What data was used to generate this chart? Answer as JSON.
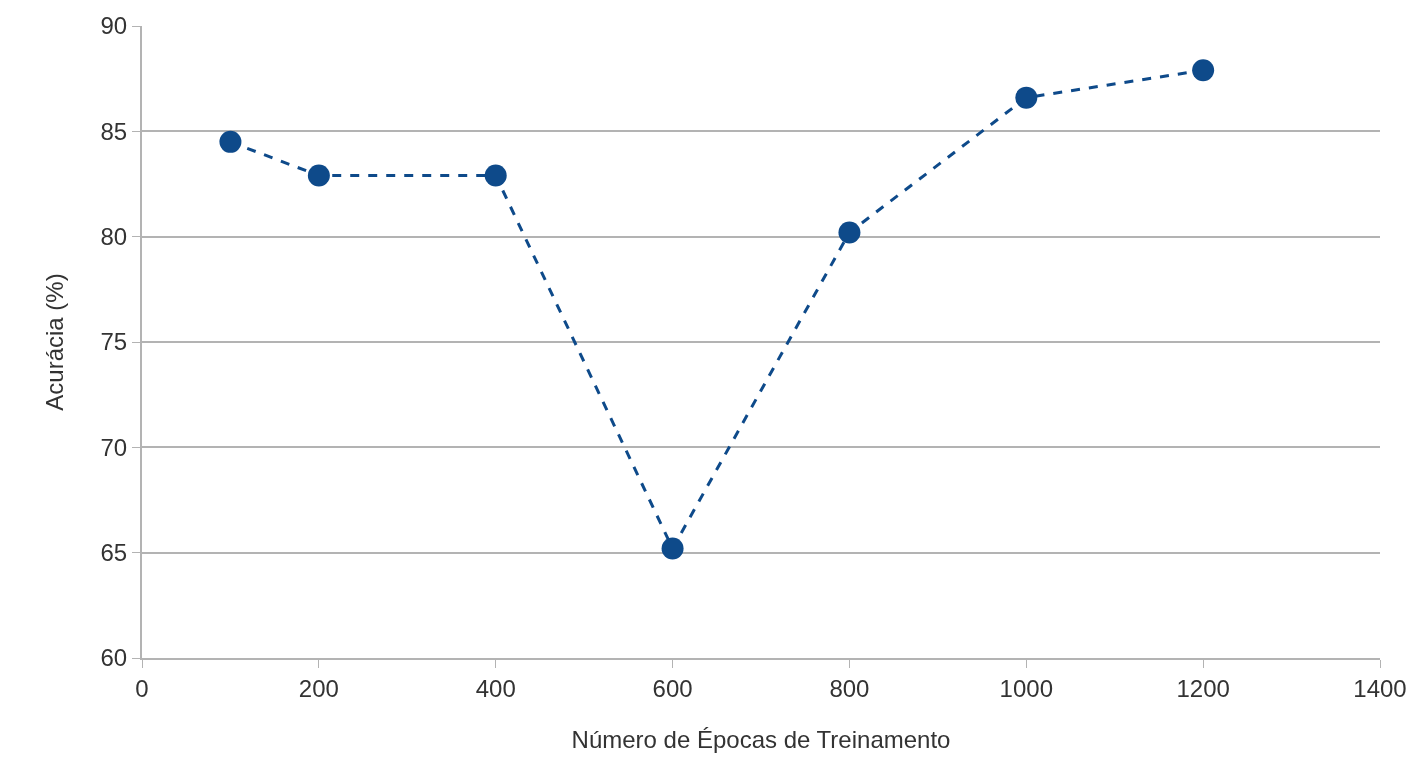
{
  "chart_data": {
    "type": "line",
    "xlabel": "Número de Épocas de Treinamento",
    "ylabel": "Acurácia (%)",
    "x": [
      100,
      200,
      400,
      600,
      800,
      1000,
      1200
    ],
    "series": [
      {
        "color": "#0e4a8a",
        "values": [
          84.5,
          82.9,
          82.9,
          65.2,
          80.2,
          86.6,
          87.9
        ]
      }
    ],
    "xlim": [
      0,
      1400
    ],
    "xticks": [
      0,
      200,
      400,
      600,
      800,
      1000,
      1200,
      1400
    ],
    "ylim": [
      60,
      90
    ],
    "yticks": [
      60,
      65,
      70,
      75,
      80,
      85,
      90
    ],
    "grid": "y",
    "marker": "circle",
    "line_style": "dashed"
  }
}
